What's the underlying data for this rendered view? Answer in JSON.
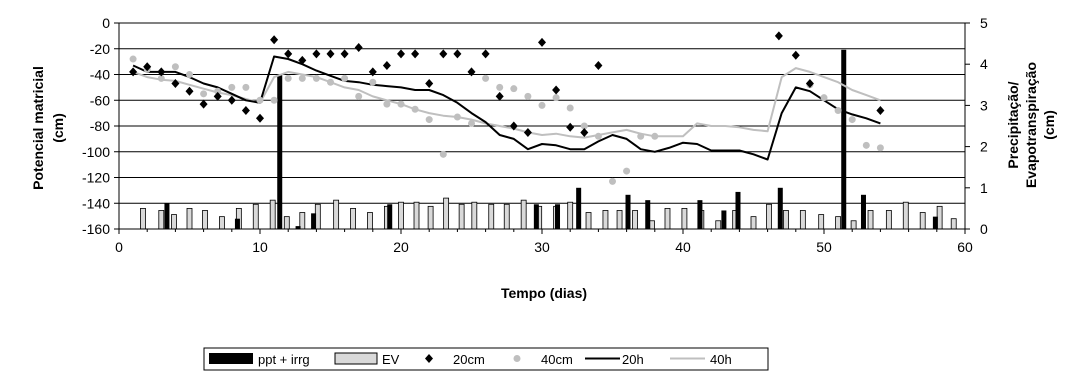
{
  "chart_data": {
    "type": "combo",
    "title": "",
    "xlabel": "Tempo (dias)",
    "ylabel": [
      "Potencial matricial",
      "(cm)"
    ],
    "y2label": [
      "Precipitação/",
      "Evapotranspiração",
      "(cm)"
    ],
    "xlim": [
      0,
      60
    ],
    "ylim": [
      -160,
      0
    ],
    "y2lim": [
      0,
      5
    ],
    "xticks": [
      0,
      10,
      20,
      30,
      40,
      50,
      60
    ],
    "yticks": [
      0,
      -20,
      -40,
      -60,
      -80,
      -100,
      -120,
      -140,
      -160
    ],
    "y2ticks": [
      0,
      1,
      2,
      3,
      4,
      5
    ],
    "legend_position": "bottom",
    "colors": {
      "ppt_irrg": "#000000",
      "ev_fill": "#d9d9d9",
      "ev_stroke": "#000000",
      "d20": "#000000",
      "d40": "#bfbfbf",
      "h20": "#000000",
      "h40": "#bfbfbf"
    },
    "series": [
      {
        "name": "ppt + irrg",
        "kind": "bar",
        "axis": "right",
        "x": [
          3.4,
          8.4,
          11.4,
          12.7,
          13.8,
          19.2,
          29.6,
          31.1,
          32.6,
          36.1,
          37.5,
          41.2,
          42.9,
          43.9,
          46.9,
          51.4,
          52.8,
          57.9
        ],
        "values": [
          0.62,
          0.25,
          3.75,
          0.07,
          0.38,
          0.6,
          0.6,
          0.6,
          1.0,
          0.83,
          0.7,
          0.7,
          0.45,
          0.9,
          1.0,
          4.35,
          0.83,
          0.3
        ]
      },
      {
        "name": "EV",
        "kind": "bar",
        "axis": "right",
        "x": [
          1.7,
          3.0,
          3.9,
          5.0,
          6.1,
          7.3,
          8.5,
          9.7,
          10.9,
          11.9,
          13.0,
          14.1,
          15.4,
          16.6,
          17.8,
          19.0,
          20.0,
          21.1,
          22.1,
          23.2,
          24.3,
          25.2,
          26.4,
          27.5,
          28.7,
          29.8,
          31.0,
          32.0,
          33.3,
          34.5,
          35.5,
          36.6,
          37.8,
          38.9,
          40.1,
          41.3,
          42.5,
          43.7,
          45.0,
          46.1,
          47.3,
          48.5,
          49.8,
          51.0,
          52.1,
          53.3,
          54.6,
          55.8,
          57.0,
          58.2,
          59.2
        ],
        "values": [
          0.5,
          0.45,
          0.35,
          0.5,
          0.45,
          0.3,
          0.5,
          0.6,
          0.7,
          0.3,
          0.4,
          0.6,
          0.7,
          0.5,
          0.4,
          0.55,
          0.65,
          0.65,
          0.55,
          0.75,
          0.6,
          0.65,
          0.6,
          0.6,
          0.7,
          0.55,
          0.55,
          0.65,
          0.4,
          0.45,
          0.45,
          0.45,
          0.2,
          0.5,
          0.5,
          0.45,
          0.2,
          0.45,
          0.3,
          0.6,
          0.45,
          0.45,
          0.35,
          0.3,
          0.2,
          0.45,
          0.45,
          0.65,
          0.4,
          0.55,
          0.25
        ]
      },
      {
        "name": "20cm",
        "kind": "scatter",
        "marker": "diamond",
        "axis": "left",
        "x": [
          1,
          2,
          3,
          4,
          5,
          6,
          7,
          8,
          9,
          10,
          11,
          12,
          13,
          14,
          15,
          16,
          17,
          18,
          19,
          20,
          21,
          22,
          23,
          24,
          25,
          26,
          27,
          28,
          29,
          30,
          31,
          32,
          33,
          34,
          46.8,
          48,
          49,
          54
        ],
        "y": [
          -38,
          -34,
          -38,
          -47,
          -53,
          -63,
          -57,
          -60,
          -68,
          -74,
          -13,
          -24,
          -29,
          -24,
          -24,
          -24,
          -19,
          -38,
          -33,
          -24,
          -24,
          -47,
          -24,
          -24,
          -38,
          -24,
          -57,
          -80,
          -85,
          -15,
          -52,
          -81,
          -85,
          -33,
          -10,
          -25,
          -47,
          -68
        ]
      },
      {
        "name": "40cm",
        "kind": "scatter",
        "marker": "circle",
        "axis": "left",
        "x": [
          1,
          2,
          3,
          4,
          5,
          6,
          7,
          8,
          9,
          10,
          11,
          12,
          13,
          14,
          15,
          16,
          17,
          18,
          19,
          20,
          21,
          22,
          23,
          24,
          25,
          26,
          27,
          28,
          29,
          30,
          31,
          32,
          33,
          34,
          35,
          36,
          37,
          38,
          49,
          50,
          51,
          52,
          53,
          54
        ],
        "y": [
          -28,
          -36,
          -43,
          -34,
          -40,
          -55,
          -53,
          -50,
          -50,
          -60,
          -60,
          -43,
          -43,
          -43,
          -46,
          -43,
          -57,
          -46,
          -63,
          -63,
          -67,
          -75,
          -102,
          -73,
          -78,
          -43,
          -50,
          -51,
          -57,
          -64,
          -58,
          -66,
          -80,
          -88,
          -123,
          -115,
          -88,
          -88,
          -48,
          -58,
          -68,
          -75,
          -95,
          -97
        ]
      },
      {
        "name": "20h",
        "kind": "line",
        "axis": "left",
        "x": [
          1,
          2,
          3,
          4,
          5,
          6,
          7,
          8,
          9,
          10,
          11,
          12,
          13,
          14,
          15,
          16,
          17,
          18,
          19,
          20,
          21,
          22,
          23,
          24,
          25,
          26,
          27,
          28,
          29,
          30,
          31,
          32,
          33,
          34,
          35,
          36,
          37,
          38,
          39,
          40,
          41,
          42,
          43,
          44,
          45,
          46,
          47,
          48,
          49,
          50,
          51,
          52,
          53,
          54
        ],
        "y": [
          -33,
          -38,
          -38,
          -38,
          -42,
          -47,
          -50,
          -55,
          -60,
          -62,
          -26,
          -28,
          -32,
          -37,
          -41,
          -45,
          -46,
          -48,
          -49,
          -50,
          -52,
          -52,
          -56,
          -62,
          -70,
          -77,
          -87,
          -90,
          -98,
          -94,
          -95,
          -98,
          -98,
          -92,
          -87,
          -90,
          -98,
          -100,
          -97,
          -93,
          -94,
          -99,
          -99,
          -99,
          -102,
          -106,
          -70,
          -50,
          -53,
          -60,
          -67,
          -71,
          -74,
          -78
        ]
      },
      {
        "name": "40h",
        "kind": "line",
        "axis": "left",
        "x": [
          1,
          2,
          3,
          4,
          5,
          6,
          7,
          8,
          9,
          10,
          11,
          12,
          13,
          14,
          15,
          16,
          17,
          18,
          19,
          20,
          21,
          22,
          23,
          24,
          25,
          26,
          27,
          28,
          29,
          30,
          31,
          32,
          33,
          34,
          35,
          36,
          37,
          38,
          39,
          40,
          41,
          42,
          43,
          44,
          45,
          46,
          47,
          48,
          49,
          50,
          51,
          52,
          53,
          54
        ],
        "y": [
          -38,
          -42,
          -44,
          -45,
          -48,
          -51,
          -54,
          -56,
          -59,
          -62,
          -42,
          -38,
          -40,
          -42,
          -46,
          -50,
          -52,
          -57,
          -60,
          -63,
          -67,
          -70,
          -72,
          -73,
          -75,
          -78,
          -80,
          -82,
          -85,
          -87,
          -86,
          -88,
          -89,
          -87,
          -85,
          -83,
          -86,
          -88,
          -88,
          -88,
          -78,
          -80,
          -80,
          -81,
          -83,
          -84,
          -42,
          -35,
          -38,
          -42,
          -46,
          -52,
          -56,
          -60
        ]
      }
    ]
  }
}
